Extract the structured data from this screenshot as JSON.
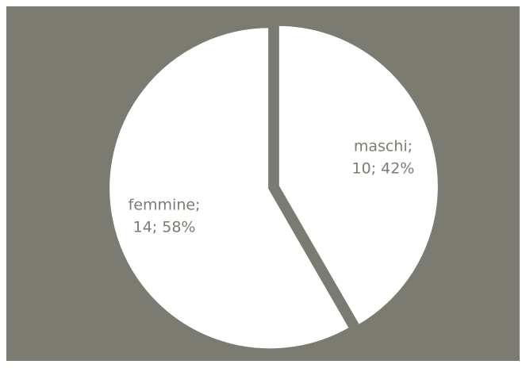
{
  "chart_data": {
    "type": "pie",
    "categories": [
      "maschi;",
      "femmine;"
    ],
    "values": [
      10,
      14
    ],
    "value_labels": [
      "10; 42%",
      "14; 58%"
    ],
    "colors": [
      "#ffffff",
      "#ffffff"
    ],
    "background": "#7b7b72"
  }
}
